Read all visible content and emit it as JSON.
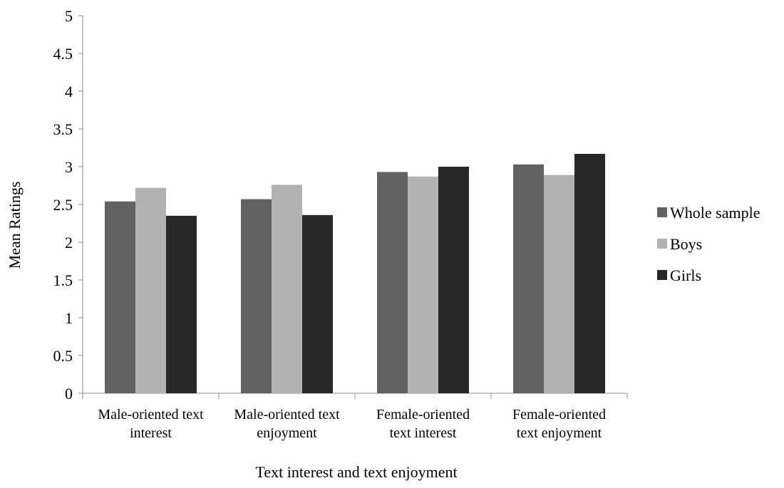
{
  "chart_data": {
    "type": "bar",
    "categories": [
      [
        "Male-oriented text",
        "interest"
      ],
      [
        "Male-oriented text",
        "enjoyment"
      ],
      [
        "Female-oriented",
        "text interest"
      ],
      [
        "Female-oriented",
        "text enjoyment"
      ]
    ],
    "series": [
      {
        "name": "Whole sample",
        "color": "#626262",
        "values": [
          2.54,
          2.57,
          2.93,
          3.03
        ]
      },
      {
        "name": "Boys",
        "color": "#b2b2b2",
        "values": [
          2.72,
          2.76,
          2.87,
          2.89
        ]
      },
      {
        "name": "Girls",
        "color": "#282828",
        "values": [
          2.35,
          2.36,
          3.0,
          3.17
        ]
      }
    ],
    "title": "",
    "xlabel": "Text interest and text enjoyment",
    "ylabel": "Mean Ratings",
    "ylim": [
      0,
      5
    ],
    "yticks": [
      "0",
      "0.5",
      "1",
      "1.5",
      "2",
      "2.5",
      "3",
      "3.5",
      "4",
      "4.5",
      "5"
    ],
    "grid": false,
    "legend_position": "right"
  }
}
